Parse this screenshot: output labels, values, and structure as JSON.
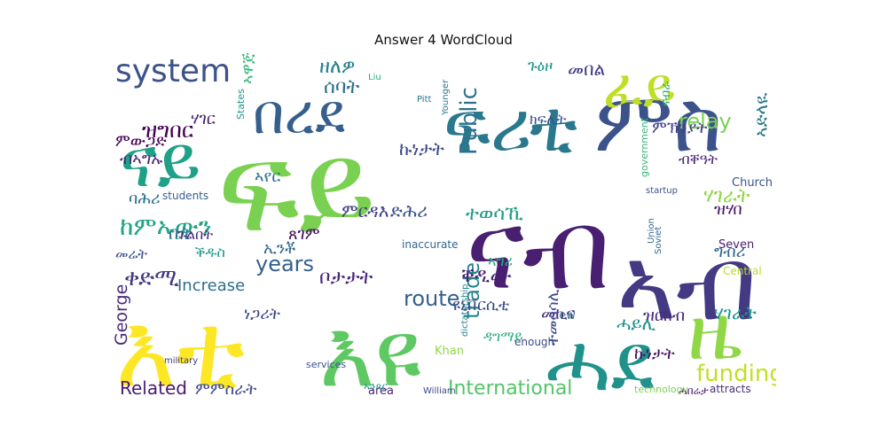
{
  "title": "Answer 4 WordCloud",
  "words": [
    {
      "text": "ፍይ",
      "color": "#7ad151"
    },
    {
      "text": "እቲ",
      "color": "#fde725"
    },
    {
      "text": "እዩ",
      "color": "#5ec962"
    },
    {
      "text": "ምስ",
      "color": "#3b528b"
    },
    {
      "text": "ናብ",
      "color": "#481f71"
    },
    {
      "text": "ሓደ",
      "color": "#21918c"
    },
    {
      "text": "ፍሪቲ",
      "color": "#2a788e"
    },
    {
      "text": "ዜ",
      "color": "#8fd744"
    },
    {
      "text": "ኣብ",
      "color": "#443983"
    },
    {
      "text": "በረደ",
      "color": "#355f8d"
    },
    {
      "text": "ናይ",
      "color": "#1fa187"
    },
    {
      "text": "system",
      "color": "#3b528b"
    },
    {
      "text": "ዝግበር",
      "color": "#440154"
    },
    {
      "text": "ከምኡውን",
      "color": "#20a486"
    },
    {
      "text": "ፈይ",
      "color": "#bddf26"
    },
    {
      "text": "funding",
      "color": "#c2df23"
    },
    {
      "text": "International",
      "color": "#52c569"
    },
    {
      "text": "route",
      "color": "#355f8d"
    },
    {
      "text": "trade",
      "color": "#26828e"
    },
    {
      "text": "Public",
      "color": "#2c728e"
    },
    {
      "text": "years",
      "color": "#34608d"
    },
    {
      "text": "relay",
      "color": "#7ad151"
    },
    {
      "text": "Related",
      "color": "#481a6c"
    },
    {
      "text": "George",
      "color": "#472c7a"
    },
    {
      "text": "Increase",
      "color": "#2e6e8e"
    },
    {
      "text": "ቀድሚ",
      "color": "#453781"
    },
    {
      "text": "ምምስራት",
      "color": "#3e4a89"
    },
    {
      "text": "ቦታታት",
      "color": "#482878"
    },
    {
      "text": "ተወሳኺ",
      "color": "#1e9c89"
    },
    {
      "text": "ኣድላዪ",
      "color": "#2a788e"
    },
    {
      "text": "ሰባት",
      "color": "#2d708e"
    },
    {
      "text": "ዘለዎ",
      "color": "#277f8e"
    },
    {
      "text": "ምርዳእ",
      "color": "#424086"
    },
    {
      "text": "ድሕሪ",
      "color": "#3b528b"
    },
    {
      "text": "ኩነታት",
      "color": "#470d60"
    },
    {
      "text": "ሃገራት",
      "color": "#8fd744"
    },
    {
      "text": "ዝሃበ",
      "color": "#481769"
    },
    {
      "text": "Church",
      "color": "#3b528b"
    },
    {
      "text": "students",
      "color": "#355f8d"
    },
    {
      "text": "government",
      "color": "#35b779"
    },
    {
      "text": "inaccurate",
      "color": "#31688e"
    },
    {
      "text": "dictatorship",
      "color": "#25848e"
    },
    {
      "text": "technology",
      "color": "#7ad151"
    },
    {
      "text": "attracts",
      "color": "#472d7b"
    },
    {
      "text": "William",
      "color": "#3e4989"
    },
    {
      "text": "services",
      "color": "#3b528b"
    },
    {
      "text": "military",
      "color": "#433e85"
    },
    {
      "text": "Khan",
      "color": "#90d743"
    },
    {
      "text": "enough",
      "color": "#3d4d8a"
    },
    {
      "text": "new",
      "color": "#2a788e"
    },
    {
      "text": "area",
      "color": "#482475"
    },
    {
      "text": "Soviet",
      "color": "#31688e"
    },
    {
      "text": "Union",
      "color": "#31688e"
    },
    {
      "text": "Seven",
      "color": "#482071"
    },
    {
      "text": "Central",
      "color": "#b5de2b"
    },
    {
      "text": "startup",
      "color": "#3b528b"
    },
    {
      "text": "States",
      "color": "#1f958b"
    },
    {
      "text": "Pitt",
      "color": "#2c728e"
    },
    {
      "text": "Liu",
      "color": "#25ab82"
    },
    {
      "text": "Younger",
      "color": "#2a788e"
    },
    {
      "text": "ሓበሬታ",
      "color": "#481b6d"
    },
    {
      "text": "ኣንጻር",
      "color": "#21918c"
    },
    {
      "text": "ጉዕዞ",
      "color": "#1f988b"
    },
    {
      "text": "መበል",
      "color": "#433e85"
    },
    {
      "text": "ኣግሪ",
      "color": "#2ab07f"
    },
    {
      "text": "ኣዋጅ",
      "color": "#35b779"
    },
    {
      "text": "ናብራ",
      "color": "#29af7f"
    },
    {
      "text": "መኪና",
      "color": "#472f7d"
    },
    {
      "text": "ሃገራት",
      "color": "#1f958b"
    },
    {
      "text": "ነጋሪት",
      "color": "#3e4a89"
    },
    {
      "text": "ምውጋድ",
      "color": "#440154"
    },
    {
      "text": "ብኣግኡ",
      "color": "#482878"
    },
    {
      "text": "ሃገር",
      "color": "#482475"
    },
    {
      "text": "ባሕሪ",
      "color": "#2c728e"
    },
    {
      "text": "ቤት",
      "color": "#2a788e"
    },
    {
      "text": "መሬት",
      "color": "#3b528b"
    },
    {
      "text": "ኢንቾ",
      "color": "#31688e"
    },
    {
      "text": "ጉልበት",
      "color": "#472c7a"
    },
    {
      "text": "ቐዲሙ",
      "color": "#482173"
    },
    {
      "text": "ተመሳሳሊ",
      "color": "#3e4a89"
    },
    {
      "text": "ዩኒቨርሲቲ",
      "color": "#3b528b"
    },
    {
      "text": "ዳግማይ",
      "color": "#29af7f"
    },
    {
      "text": "ምኽንያት",
      "color": "#433e85"
    },
    {
      "text": "ብቐዓት",
      "color": "#482475"
    },
    {
      "text": "ዝርከብ",
      "color": "#472a7a"
    },
    {
      "text": "ሓይሊ",
      "color": "#20928c"
    },
    {
      "text": "ኩነታት",
      "color": "#3e4a89"
    },
    {
      "text": "ክፍሊት",
      "color": "#3b528b"
    },
    {
      "text": "ኣየር",
      "color": "#2c728e"
    },
    {
      "text": "ግብሪ",
      "color": "#31688e"
    },
    {
      "text": "ቕዱስ",
      "color": "#1f988b"
    },
    {
      "text": "ጸገም",
      "color": "#470d60"
    },
    {
      "text": "ሰራሕ",
      "color": "#26828e"
    }
  ]
}
